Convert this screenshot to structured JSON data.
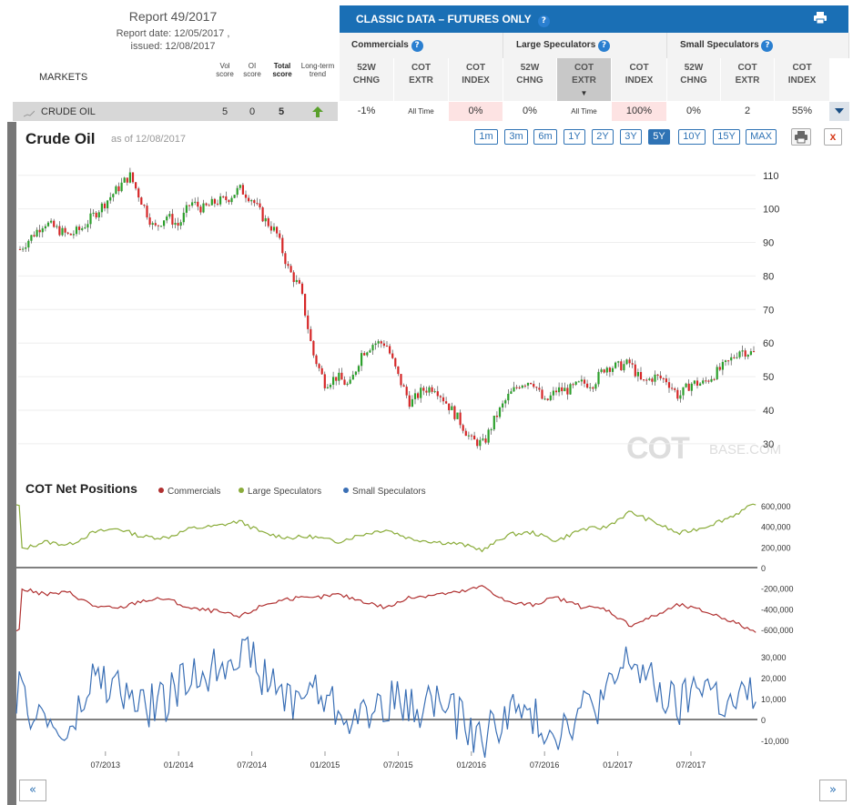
{
  "header": {
    "report_title": "Report 49/2017",
    "report_date": "Report date: 12/05/2017 ,",
    "issued": "issued: 12/08/2017",
    "markets_label": "MARKETS",
    "cols": {
      "vol": [
        "Vol",
        "score"
      ],
      "oi": [
        "OI",
        "score"
      ],
      "total": [
        "Total",
        "score"
      ],
      "trend": [
        "Long-term",
        "trend"
      ]
    }
  },
  "classic": {
    "title": "CLASSIC DATA – FUTURES ONLY",
    "help": "?",
    "groups": [
      "Commercials",
      "Large Speculators",
      "Small Speculators"
    ],
    "subcols": [
      [
        "52W",
        "CHNG"
      ],
      [
        "COT",
        "EXTR"
      ],
      [
        "COT",
        "INDEX"
      ],
      [
        "52W",
        "CHNG"
      ],
      [
        "COT",
        "EXTR"
      ],
      [
        "COT",
        "INDEX"
      ],
      [
        "52W",
        "CHNG"
      ],
      [
        "COT",
        "EXTR"
      ],
      [
        "COT",
        "INDEX"
      ]
    ]
  },
  "market_row": {
    "name": "CRUDE OIL",
    "vol": "5",
    "oi": "0",
    "total": "5",
    "values": [
      "-1%",
      "All Time",
      "0%",
      "0%",
      "All Time",
      "100%",
      "0%",
      "2",
      "55%"
    ]
  },
  "chart": {
    "title": "Crude Oil",
    "as_of": "as of 12/08/2017",
    "ranges": [
      "1m",
      "3m",
      "6m",
      "1Y",
      "2Y",
      "3Y",
      "5Y",
      "10Y",
      "15Y",
      "MAX"
    ],
    "active_range": "5Y",
    "close": "x",
    "watermark": "COT",
    "watermark_small": "BASE.COM",
    "cot_title": "COT Net Positions",
    "legend": [
      {
        "name": "Commercials",
        "color": "#b03030"
      },
      {
        "name": "Large Speculators",
        "color": "#8aac3a"
      },
      {
        "name": "Small Speculators",
        "color": "#3a6fb5"
      }
    ],
    "nav_prev": "«",
    "nav_next": "»"
  },
  "chart_data": [
    {
      "type": "candlestick",
      "title": "Crude Oil",
      "y_ticks": [
        30,
        40,
        50,
        60,
        70,
        80,
        90,
        100,
        110
      ],
      "ylim": [
        24,
        114
      ],
      "up_color": "#2ca02c",
      "down_color": "#d62728",
      "x_ticks": [
        "07/2013",
        "01/2014",
        "07/2014",
        "01/2015",
        "07/2015",
        "01/2016",
        "07/2016",
        "01/2017",
        "07/2017"
      ],
      "close_series": [
        {
          "date": "2012-12",
          "value": 88
        },
        {
          "date": "2013-02",
          "value": 96
        },
        {
          "date": "2013-04",
          "value": 92
        },
        {
          "date": "2013-05",
          "value": 94
        },
        {
          "date": "2013-06",
          "value": 98
        },
        {
          "date": "2013-08",
          "value": 106
        },
        {
          "date": "2013-09",
          "value": 110
        },
        {
          "date": "2013-10",
          "value": 102
        },
        {
          "date": "2013-11",
          "value": 94
        },
        {
          "date": "2013-12",
          "value": 98
        },
        {
          "date": "2014-01",
          "value": 95
        },
        {
          "date": "2014-02",
          "value": 102
        },
        {
          "date": "2014-03",
          "value": 100
        },
        {
          "date": "2014-04",
          "value": 102
        },
        {
          "date": "2014-05",
          "value": 103
        },
        {
          "date": "2014-06",
          "value": 106
        },
        {
          "date": "2014-07",
          "value": 103
        },
        {
          "date": "2014-08",
          "value": 97
        },
        {
          "date": "2014-09",
          "value": 93
        },
        {
          "date": "2014-10",
          "value": 82
        },
        {
          "date": "2014-11",
          "value": 76
        },
        {
          "date": "2014-12",
          "value": 57
        },
        {
          "date": "2015-01",
          "value": 48
        },
        {
          "date": "2015-02",
          "value": 50
        },
        {
          "date": "2015-03",
          "value": 47
        },
        {
          "date": "2015-04",
          "value": 57
        },
        {
          "date": "2015-05",
          "value": 60
        },
        {
          "date": "2015-06",
          "value": 60
        },
        {
          "date": "2015-07",
          "value": 50
        },
        {
          "date": "2015-08",
          "value": 42
        },
        {
          "date": "2015-09",
          "value": 46
        },
        {
          "date": "2015-10",
          "value": 47
        },
        {
          "date": "2015-11",
          "value": 42
        },
        {
          "date": "2015-12",
          "value": 37
        },
        {
          "date": "2016-01",
          "value": 31
        },
        {
          "date": "2016-02",
          "value": 30
        },
        {
          "date": "2016-03",
          "value": 38
        },
        {
          "date": "2016-04",
          "value": 44
        },
        {
          "date": "2016-05",
          "value": 48
        },
        {
          "date": "2016-06",
          "value": 49
        },
        {
          "date": "2016-07",
          "value": 42
        },
        {
          "date": "2016-08",
          "value": 46
        },
        {
          "date": "2016-09",
          "value": 46
        },
        {
          "date": "2016-10",
          "value": 48
        },
        {
          "date": "2016-11",
          "value": 48
        },
        {
          "date": "2016-12",
          "value": 53
        },
        {
          "date": "2017-01",
          "value": 53
        },
        {
          "date": "2017-02",
          "value": 54
        },
        {
          "date": "2017-03",
          "value": 48
        },
        {
          "date": "2017-04",
          "value": 50
        },
        {
          "date": "2017-05",
          "value": 49
        },
        {
          "date": "2017-06",
          "value": 44
        },
        {
          "date": "2017-07",
          "value": 48
        },
        {
          "date": "2017-08",
          "value": 48
        },
        {
          "date": "2017-09",
          "value": 51
        },
        {
          "date": "2017-10",
          "value": 54
        },
        {
          "date": "2017-11",
          "value": 58
        },
        {
          "date": "2017-12",
          "value": 57
        }
      ]
    },
    {
      "type": "line",
      "title": "COT Net Positions",
      "y_ticks": [
        -600000,
        -400000,
        -200000,
        0,
        200000,
        400000,
        600000
      ],
      "ylim": [
        -660000,
        660000
      ],
      "x_ticks": [
        "07/2013",
        "01/2014",
        "07/2014",
        "01/2015",
        "07/2015",
        "01/2016",
        "07/2016",
        "01/2017",
        "07/2017"
      ],
      "series": [
        {
          "name": "Large Speculators",
          "color": "#8aac3a",
          "values": [
            {
              "date": "2012-12",
              "value": 170000
            },
            {
              "date": "2013-02",
              "value": 250000
            },
            {
              "date": "2013-04",
              "value": 220000
            },
            {
              "date": "2013-06",
              "value": 340000
            },
            {
              "date": "2013-08",
              "value": 380000
            },
            {
              "date": "2013-10",
              "value": 300000
            },
            {
              "date": "2013-12",
              "value": 290000
            },
            {
              "date": "2014-02",
              "value": 380000
            },
            {
              "date": "2014-04",
              "value": 400000
            },
            {
              "date": "2014-06",
              "value": 450000
            },
            {
              "date": "2014-08",
              "value": 330000
            },
            {
              "date": "2014-10",
              "value": 290000
            },
            {
              "date": "2014-12",
              "value": 300000
            },
            {
              "date": "2015-02",
              "value": 250000
            },
            {
              "date": "2015-04",
              "value": 320000
            },
            {
              "date": "2015-06",
              "value": 370000
            },
            {
              "date": "2015-08",
              "value": 280000
            },
            {
              "date": "2015-10",
              "value": 250000
            },
            {
              "date": "2015-12",
              "value": 230000
            },
            {
              "date": "2016-02",
              "value": 170000
            },
            {
              "date": "2016-04",
              "value": 320000
            },
            {
              "date": "2016-06",
              "value": 340000
            },
            {
              "date": "2016-08",
              "value": 260000
            },
            {
              "date": "2016-10",
              "value": 370000
            },
            {
              "date": "2016-12",
              "value": 390000
            },
            {
              "date": "2017-02",
              "value": 540000
            },
            {
              "date": "2017-04",
              "value": 440000
            },
            {
              "date": "2017-06",
              "value": 330000
            },
            {
              "date": "2017-08",
              "value": 390000
            },
            {
              "date": "2017-10",
              "value": 480000
            },
            {
              "date": "2017-12",
              "value": 600000
            }
          ]
        },
        {
          "name": "Commercials",
          "color": "#b03030",
          "values": [
            {
              "date": "2012-12",
              "value": -200000
            },
            {
              "date": "2013-02",
              "value": -260000
            },
            {
              "date": "2013-04",
              "value": -240000
            },
            {
              "date": "2013-06",
              "value": -370000
            },
            {
              "date": "2013-08",
              "value": -400000
            },
            {
              "date": "2013-10",
              "value": -320000
            },
            {
              "date": "2013-12",
              "value": -300000
            },
            {
              "date": "2014-02",
              "value": -400000
            },
            {
              "date": "2014-04",
              "value": -420000
            },
            {
              "date": "2014-06",
              "value": -480000
            },
            {
              "date": "2014-08",
              "value": -360000
            },
            {
              "date": "2014-10",
              "value": -300000
            },
            {
              "date": "2014-12",
              "value": -300000
            },
            {
              "date": "2015-02",
              "value": -260000
            },
            {
              "date": "2015-04",
              "value": -320000
            },
            {
              "date": "2015-06",
              "value": -390000
            },
            {
              "date": "2015-08",
              "value": -290000
            },
            {
              "date": "2015-10",
              "value": -260000
            },
            {
              "date": "2015-12",
              "value": -240000
            },
            {
              "date": "2016-02",
              "value": -180000
            },
            {
              "date": "2016-04",
              "value": -340000
            },
            {
              "date": "2016-06",
              "value": -360000
            },
            {
              "date": "2016-08",
              "value": -290000
            },
            {
              "date": "2016-10",
              "value": -380000
            },
            {
              "date": "2016-12",
              "value": -400000
            },
            {
              "date": "2017-02",
              "value": -560000
            },
            {
              "date": "2017-04",
              "value": -470000
            },
            {
              "date": "2017-06",
              "value": -360000
            },
            {
              "date": "2017-08",
              "value": -420000
            },
            {
              "date": "2017-10",
              "value": -500000
            },
            {
              "date": "2017-12",
              "value": -610000
            }
          ]
        },
        {
          "name": "Small Speculators",
          "color": "#3a6fb5",
          "values": [
            {
              "date": "2012-12",
              "value": 10000
            },
            {
              "date": "2013-02",
              "value": 0
            },
            {
              "date": "2013-04",
              "value": -10000
            },
            {
              "date": "2013-06",
              "value": 20000
            },
            {
              "date": "2013-08",
              "value": 15000
            },
            {
              "date": "2013-10",
              "value": 5000
            },
            {
              "date": "2013-12",
              "value": 10000
            },
            {
              "date": "2014-02",
              "value": 20000
            },
            {
              "date": "2014-04",
              "value": 25000
            },
            {
              "date": "2014-06",
              "value": 35000
            },
            {
              "date": "2014-08",
              "value": 20000
            },
            {
              "date": "2014-10",
              "value": 10000
            },
            {
              "date": "2014-12",
              "value": 15000
            },
            {
              "date": "2015-02",
              "value": 5000
            },
            {
              "date": "2015-04",
              "value": 0
            },
            {
              "date": "2015-06",
              "value": 10000
            },
            {
              "date": "2015-08",
              "value": 5000
            },
            {
              "date": "2015-10",
              "value": 10000
            },
            {
              "date": "2015-12",
              "value": 0
            },
            {
              "date": "2016-02",
              "value": -10000
            },
            {
              "date": "2016-04",
              "value": 5000
            },
            {
              "date": "2016-06",
              "value": 0
            },
            {
              "date": "2016-08",
              "value": -5000
            },
            {
              "date": "2016-10",
              "value": 5000
            },
            {
              "date": "2016-12",
              "value": 10000
            },
            {
              "date": "2017-02",
              "value": 30000
            },
            {
              "date": "2017-04",
              "value": 15000
            },
            {
              "date": "2017-06",
              "value": 5000
            },
            {
              "date": "2017-08",
              "value": 20000
            },
            {
              "date": "2017-10",
              "value": 5000
            },
            {
              "date": "2017-12",
              "value": 12000
            }
          ]
        }
      ],
      "small_spec_ticks": [
        -10000,
        0,
        10000,
        20000,
        30000
      ]
    }
  ]
}
